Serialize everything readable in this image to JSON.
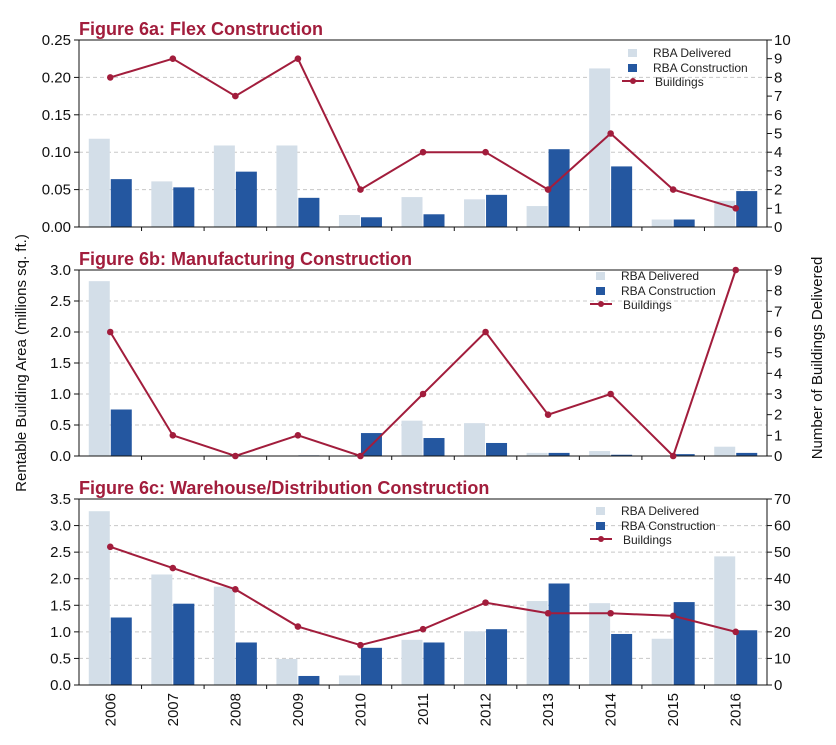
{
  "colors": {
    "delivered": "#d3dee8",
    "construction": "#2457a0",
    "buildings": "#a21d3c",
    "title": "#a21d3c",
    "grid": "#c8c8c8"
  },
  "axis_titles": {
    "left": "Rentable Building Area (millions sq. ft.)",
    "right": "Number of Buildings Delivered"
  },
  "legend": {
    "delivered": "RBA Delivered",
    "construction": "RBA Construction",
    "buildings": "Buildings"
  },
  "chart_data": [
    {
      "type": "bar",
      "title": "Figure 6a:  Flex Construction",
      "categories": [
        "2006",
        "2007",
        "2008",
        "2009",
        "2010",
        "2011",
        "2012",
        "2013",
        "2014",
        "2015",
        "2016"
      ],
      "ylabel": "Rentable Building Area (millions sq. ft.)",
      "y2label": "Number of Buildings Delivered",
      "ylim": [
        0,
        0.25
      ],
      "yticks": [
        "0.00",
        "0.05",
        "0.10",
        "0.15",
        "0.20",
        "0.25"
      ],
      "y2lim": [
        0,
        10
      ],
      "y2ticks": [
        "0",
        "1",
        "2",
        "3",
        "4",
        "5",
        "6",
        "7",
        "8",
        "9",
        "10"
      ],
      "grid": true,
      "legend_position": "top-right",
      "series": [
        {
          "name": "RBA Delivered",
          "kind": "bar",
          "values": [
            0.118,
            0.061,
            0.109,
            0.109,
            0.016,
            0.04,
            0.037,
            0.028,
            0.212,
            0.01,
            0.035
          ]
        },
        {
          "name": "RBA Construction",
          "kind": "bar",
          "values": [
            0.064,
            0.053,
            0.074,
            0.039,
            0.013,
            0.017,
            0.043,
            0.104,
            0.081,
            0.01,
            0.048
          ]
        },
        {
          "name": "Buildings",
          "kind": "line",
          "axis": "right",
          "values": [
            8,
            9,
            7,
            9,
            2,
            4,
            4,
            2,
            5,
            2,
            1
          ]
        }
      ]
    },
    {
      "type": "bar",
      "title": "Figure 6b:  Manufacturing Construction",
      "categories": [
        "2006",
        "2007",
        "2008",
        "2009",
        "2010",
        "2011",
        "2012",
        "2013",
        "2014",
        "2015",
        "2016"
      ],
      "ylabel": "Rentable Building Area (millions sq. ft.)",
      "y2label": "Number of Buildings Delivered",
      "ylim": [
        0,
        3.0
      ],
      "yticks": [
        "0.0",
        "0.5",
        "1.0",
        "1.5",
        "2.0",
        "2.5",
        "3.0"
      ],
      "y2lim": [
        0,
        9
      ],
      "y2ticks": [
        "0",
        "1",
        "2",
        "3",
        "4",
        "5",
        "6",
        "7",
        "8",
        "9"
      ],
      "grid": true,
      "legend_position": "top-right",
      "series": [
        {
          "name": "RBA Delivered",
          "kind": "bar",
          "values": [
            2.82,
            0.0,
            0.0,
            0.0,
            0.0,
            0.57,
            0.53,
            0.05,
            0.08,
            0.0,
            0.15
          ]
        },
        {
          "name": "RBA Construction",
          "kind": "bar",
          "values": [
            0.75,
            0.0,
            0.0,
            0.01,
            0.37,
            0.29,
            0.21,
            0.05,
            0.02,
            0.03,
            0.05
          ]
        },
        {
          "name": "Buildings",
          "kind": "line",
          "axis": "right",
          "values": [
            6,
            1,
            0,
            1,
            0,
            3,
            6,
            2,
            3,
            0,
            9
          ]
        }
      ]
    },
    {
      "type": "bar",
      "title": "Figure 6c:  Warehouse/Distribution Construction",
      "categories": [
        "2006",
        "2007",
        "2008",
        "2009",
        "2010",
        "2011",
        "2012",
        "2013",
        "2014",
        "2015",
        "2016"
      ],
      "ylabel": "Rentable Building Area (millions sq. ft.)",
      "y2label": "Number of Buildings Delivered",
      "ylim": [
        0,
        3.5
      ],
      "yticks": [
        "0.0",
        "0.5",
        "1.0",
        "1.5",
        "2.0",
        "2.5",
        "3.0",
        "3.5"
      ],
      "y2lim": [
        0,
        70
      ],
      "y2ticks": [
        "0",
        "10",
        "20",
        "30",
        "40",
        "50",
        "60",
        "70"
      ],
      "grid": true,
      "legend_position": "top-right",
      "series": [
        {
          "name": "RBA Delivered",
          "kind": "bar",
          "values": [
            3.27,
            2.08,
            1.85,
            0.49,
            0.18,
            0.85,
            1.01,
            1.58,
            1.54,
            0.87,
            2.42
          ]
        },
        {
          "name": "RBA Construction",
          "kind": "bar",
          "values": [
            1.27,
            1.53,
            0.8,
            0.17,
            0.7,
            0.8,
            1.05,
            1.91,
            0.96,
            1.56,
            1.03
          ]
        },
        {
          "name": "Buildings",
          "kind": "line",
          "axis": "right",
          "values": [
            52,
            44,
            36,
            22,
            15,
            21,
            31,
            27,
            27,
            26,
            20
          ]
        }
      ]
    }
  ]
}
